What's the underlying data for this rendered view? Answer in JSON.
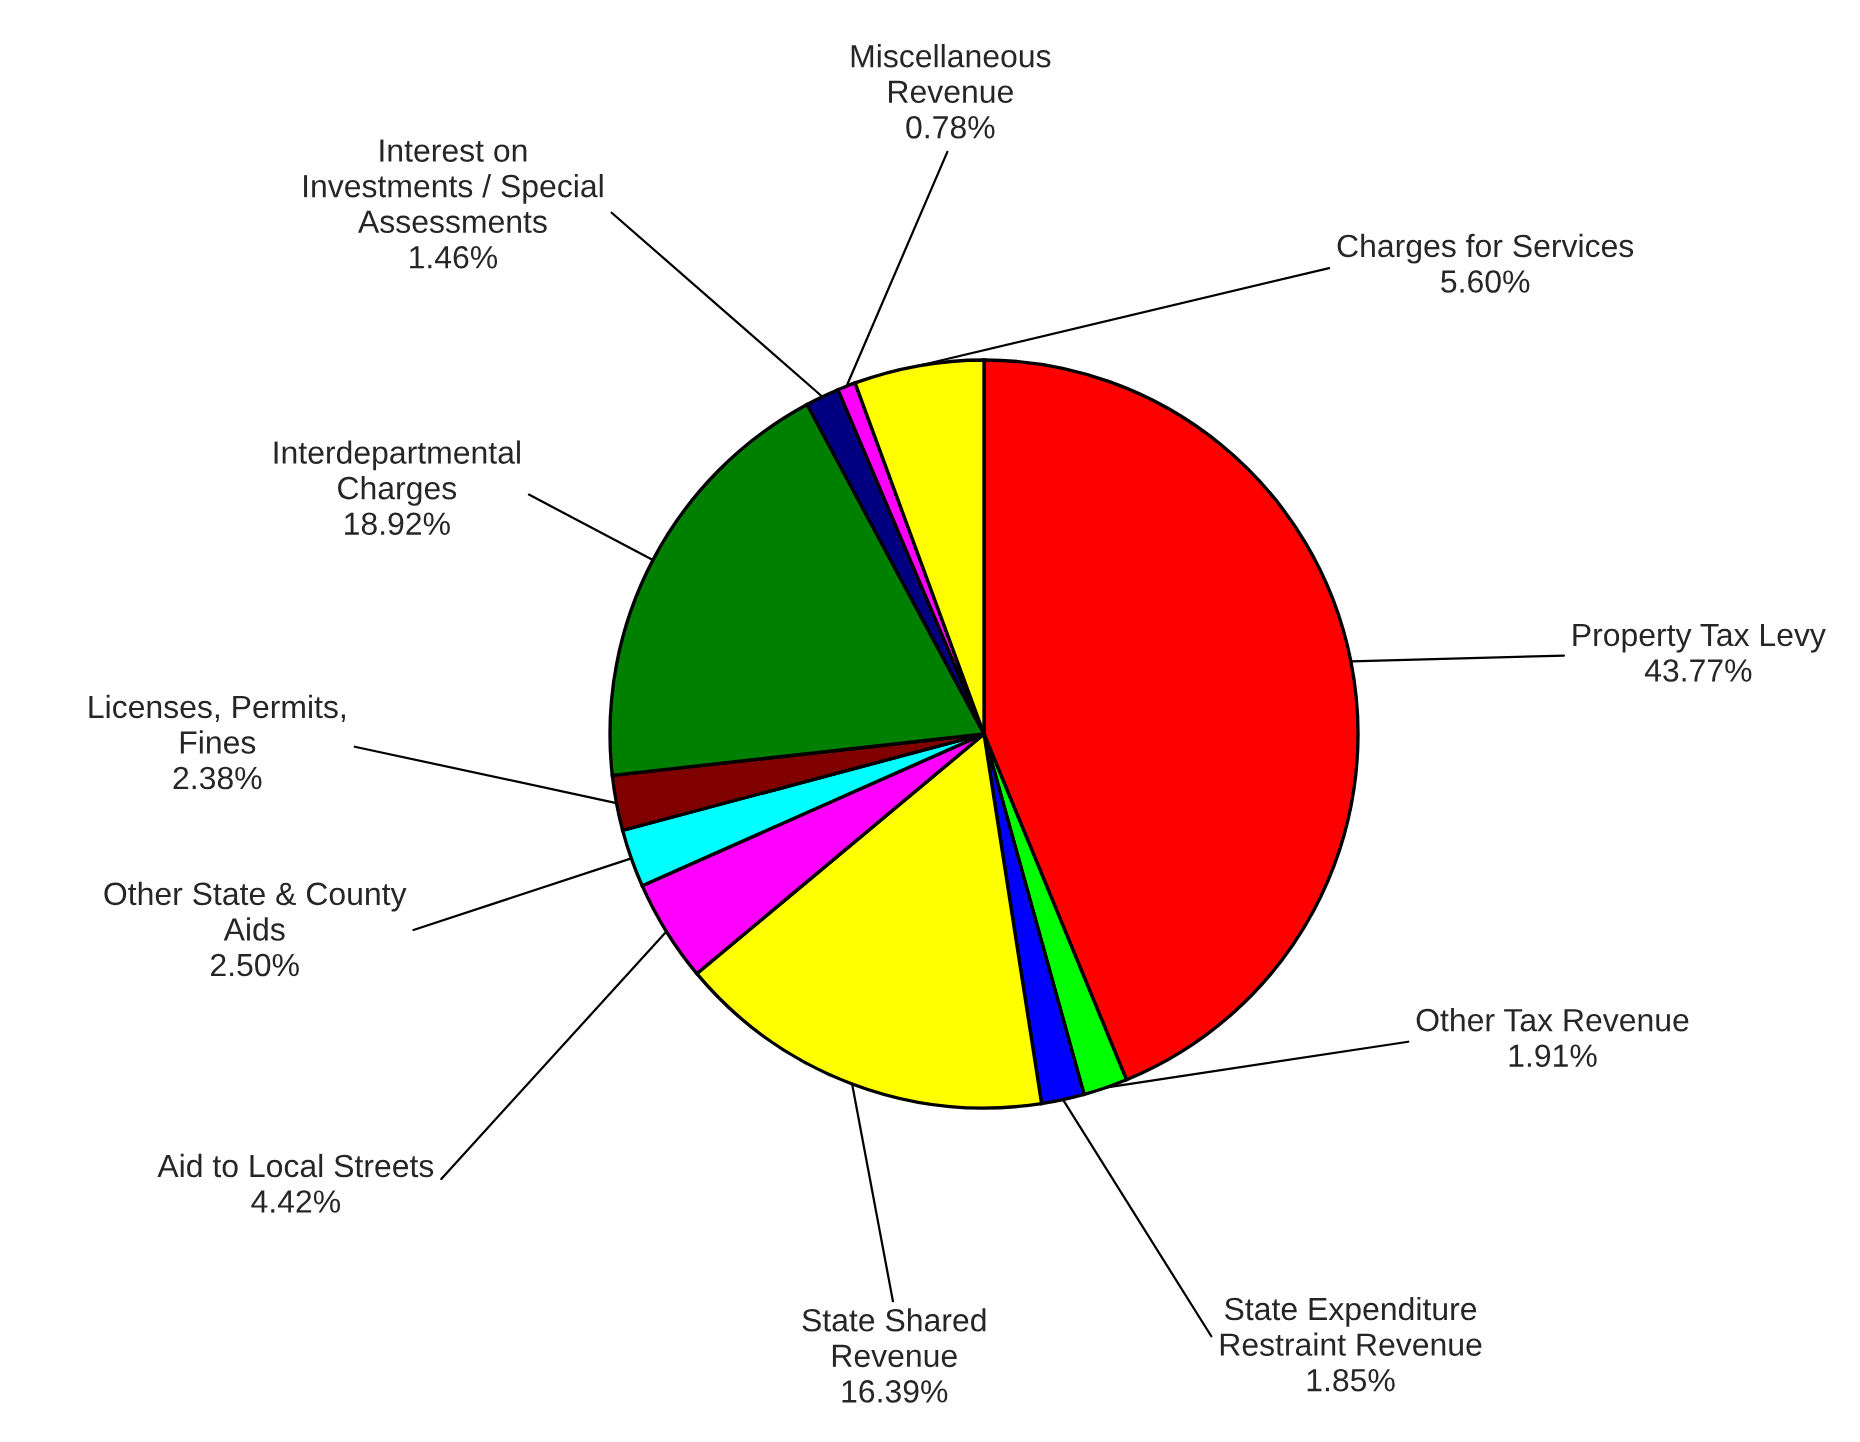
{
  "chart_data": {
    "type": "pie",
    "categories": [
      "Property Tax Levy",
      "Other Tax Revenue",
      "State Expenditure Restraint Revenue",
      "State Shared Revenue",
      "Aid to Local Streets",
      "Other State & County Aids",
      "Licenses, Permits, Fines",
      "Interdepartmental Charges",
      "Interest on Investments / Special Assessments",
      "Miscellaneous Revenue",
      "Charges for Services"
    ],
    "values": [
      43.77,
      1.91,
      1.85,
      16.39,
      4.42,
      2.5,
      2.38,
      18.92,
      1.46,
      0.78,
      5.6
    ],
    "value_labels": [
      "43.77%",
      "1.91%",
      "1.85%",
      "16.39%",
      "4.42%",
      "2.50%",
      "2.38%",
      "18.92%",
      "1.46%",
      "0.78%",
      "5.60%"
    ],
    "colors": [
      "#ff0000",
      "#00ff00",
      "#0000ff",
      "#ffff00",
      "#ff00ff",
      "#00ffff",
      "#800000",
      "#008000",
      "#000080",
      "#ff00ff",
      "#ffff00"
    ],
    "legend": false
  }
}
